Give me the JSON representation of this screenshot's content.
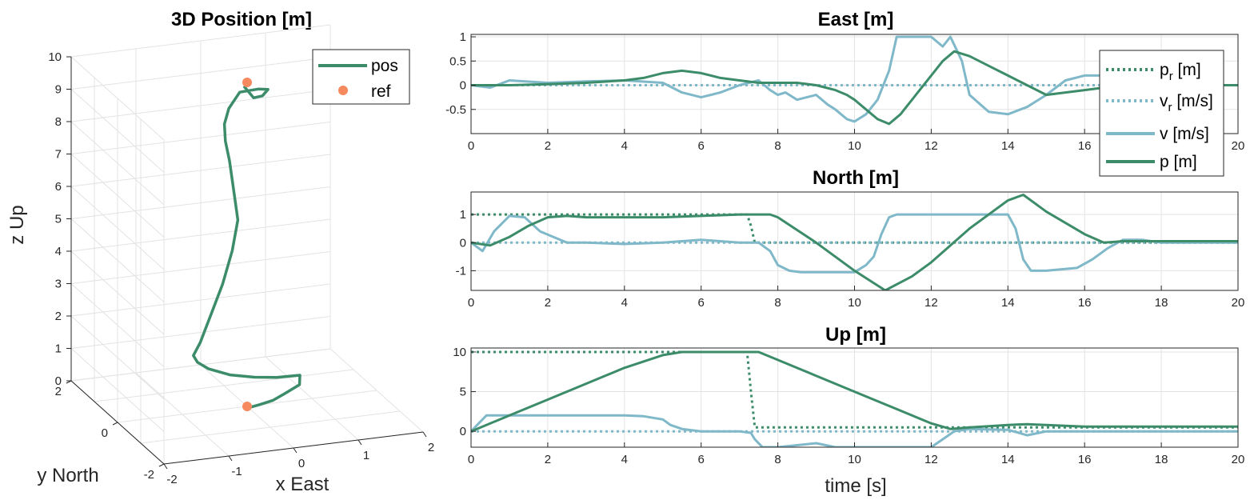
{
  "colors": {
    "pos": "#3c8c6a",
    "ref": "#f7895e",
    "vel": "#7fb8c8",
    "grid": "#e3e3e3",
    "axis": "#262626"
  },
  "chart_data": [
    {
      "type": "line3d",
      "title": "3D Position [m]",
      "xlabel": "x East",
      "ylabel": "y North",
      "zlabel": "z Up",
      "xticks": [
        "-2",
        "-1",
        "0",
        "1",
        "2"
      ],
      "yticks": [
        "-2",
        "0",
        "2"
      ],
      "zticks": [
        "0",
        "1",
        "2",
        "3",
        "4",
        "5",
        "6",
        "7",
        "8",
        "9",
        "10"
      ],
      "xlim": [
        -2,
        2
      ],
      "ylim": [
        -2,
        2
      ],
      "zlim": [
        0,
        10
      ],
      "grid": true,
      "legend": {
        "placement": "top-right",
        "entries": [
          "pos",
          "ref"
        ]
      },
      "series": [
        {
          "name": "pos",
          "x": [
            -0.05,
            0.05,
            0.15,
            0.25,
            0.45,
            0.6,
            0.35,
            0.15,
            -0.05,
            -0.2,
            -0.3,
            -0.4,
            -0.4,
            -0.3,
            -0.2,
            -0.05,
            0.0,
            -0.1,
            -0.2,
            -0.3,
            -0.35,
            -0.3,
            -0.15,
            0.1,
            0.25,
            0.2,
            0.1,
            -0.05
          ],
          "y": [
            -0.2,
            -0.4,
            -0.7,
            -0.9,
            -1.0,
            -0.6,
            -0.3,
            0.1,
            0.6,
            1.1,
            1.3,
            1.2,
            0.9,
            0.7,
            0.5,
            0.5,
            0.4,
            0.3,
            0.2,
            0.1,
            0.0,
            -0.05,
            -0.1,
            -0.2,
            -0.2,
            -0.1,
            0.0,
            0.0
          ],
          "z": [
            0.1,
            0.3,
            0.6,
            0.9,
            1.2,
            1.2,
            1.0,
            0.8,
            0.6,
            0.5,
            0.6,
            0.9,
            1.5,
            2.5,
            3.5,
            4.5,
            5.5,
            6.5,
            7.5,
            8.2,
            8.8,
            9.3,
            9.8,
            9.9,
            9.85,
            9.6,
            9.5,
            9.9
          ]
        },
        {
          "name": "ref",
          "points": [
            {
              "x": 0,
              "y": 0,
              "z": 10
            },
            {
              "x": 0,
              "y": 0,
              "z": 0
            }
          ]
        }
      ]
    },
    {
      "type": "line",
      "title": "East [m]",
      "xlim": [
        0,
        20
      ],
      "ylim": [
        -1,
        1.05
      ],
      "xticks": [
        0,
        2,
        4,
        6,
        8,
        10,
        12,
        14,
        16,
        18,
        20
      ],
      "yticks": [
        1,
        0.5,
        0,
        -0.5
      ],
      "ytick_labels": [
        "1",
        "0.5",
        "0",
        "-0.5"
      ],
      "grid": true,
      "legend": {
        "placement": "top-right",
        "entries": [
          "p_r [m]",
          "v_r [m/s]",
          "v [m/s]",
          "p [m]"
        ]
      },
      "series": [
        {
          "name": "p_r [m]",
          "style": "dotted",
          "x": [
            0,
            20
          ],
          "y": [
            0,
            0
          ]
        },
        {
          "name": "v_r [m/s]",
          "style": "dotted",
          "x": [
            0,
            20
          ],
          "y": [
            0,
            0
          ]
        },
        {
          "name": "v [m/s]",
          "x": [
            0,
            0.5,
            1,
            2,
            3,
            4,
            5,
            5.5,
            6,
            6.5,
            7,
            7.5,
            7.8,
            8,
            8.2,
            8.5,
            9,
            9.3,
            9.5,
            9.8,
            10,
            10.3,
            10.6,
            10.9,
            11.1,
            11.5,
            12,
            12.3,
            12.5,
            12.8,
            13,
            13.5,
            14,
            14.5,
            15,
            15.5,
            16,
            16.5,
            17,
            18,
            19,
            20
          ],
          "y": [
            0,
            -0.05,
            0.1,
            0.05,
            0.08,
            0.1,
            0.05,
            -0.15,
            -0.25,
            -0.15,
            0.0,
            0.1,
            -0.1,
            -0.2,
            -0.15,
            -0.3,
            -0.2,
            -0.4,
            -0.5,
            -0.7,
            -0.75,
            -0.6,
            -0.3,
            0.3,
            1.0,
            1.0,
            1.0,
            0.8,
            1.0,
            0.5,
            -0.2,
            -0.55,
            -0.6,
            -0.45,
            -0.2,
            0.1,
            0.2,
            0.2,
            0.1,
            0,
            0,
            0
          ]
        },
        {
          "name": "p [m]",
          "x": [
            0,
            1,
            2,
            3,
            4,
            4.5,
            5,
            5.5,
            6,
            6.5,
            7,
            7.5,
            8,
            8.5,
            9,
            9.5,
            9.8,
            10,
            10.3,
            10.6,
            10.9,
            11.2,
            11.6,
            12,
            12.3,
            12.6,
            13,
            13.5,
            14,
            14.5,
            15,
            16,
            17,
            18,
            19,
            20
          ],
          "y": [
            0,
            0,
            0.02,
            0.05,
            0.1,
            0.15,
            0.25,
            0.3,
            0.25,
            0.15,
            0.1,
            0.05,
            0.05,
            0.05,
            0.0,
            -0.1,
            -0.2,
            -0.3,
            -0.5,
            -0.7,
            -0.8,
            -0.6,
            -0.2,
            0.2,
            0.5,
            0.7,
            0.6,
            0.4,
            0.2,
            0.0,
            -0.2,
            -0.1,
            0,
            0,
            0,
            0
          ]
        }
      ]
    },
    {
      "type": "line",
      "title": "North [m]",
      "xlim": [
        0,
        20
      ],
      "ylim": [
        -1.7,
        1.8
      ],
      "xticks": [
        0,
        2,
        4,
        6,
        8,
        10,
        12,
        14,
        16,
        18,
        20
      ],
      "yticks": [
        1,
        0,
        -1
      ],
      "ytick_labels": [
        "1",
        "0",
        "-1"
      ],
      "grid": true,
      "series": [
        {
          "name": "p_r [m]",
          "style": "dotted",
          "x": [
            0,
            7.2,
            7.3,
            7.4,
            20
          ],
          "y": [
            1,
            1,
            0.6,
            0,
            0
          ]
        },
        {
          "name": "v_r [m/s]",
          "style": "dotted",
          "x": [
            0,
            20
          ],
          "y": [
            0,
            0
          ]
        },
        {
          "name": "v [m/s]",
          "x": [
            0,
            0.3,
            0.6,
            1,
            1.4,
            1.8,
            2.5,
            3,
            4,
            5,
            6,
            7,
            7.5,
            7.8,
            8,
            8.3,
            8.6,
            9,
            10,
            10.3,
            10.5,
            10.7,
            10.9,
            11.1,
            11.5,
            12,
            13,
            14,
            14.2,
            14.4,
            14.6,
            15,
            15.4,
            15.8,
            16.2,
            16.6,
            17,
            17.5,
            18,
            19,
            20
          ],
          "y": [
            0,
            -0.3,
            0.4,
            0.95,
            0.9,
            0.4,
            0.0,
            0.0,
            -0.05,
            0.0,
            0.1,
            0.0,
            0.0,
            -0.3,
            -0.8,
            -1.0,
            -1.05,
            -1.05,
            -1.05,
            -0.8,
            -0.5,
            0.3,
            0.9,
            1.0,
            1.0,
            1.0,
            1.0,
            1.0,
            0.5,
            -0.6,
            -1.0,
            -1.0,
            -0.95,
            -0.9,
            -0.6,
            -0.2,
            0.1,
            0.1,
            0.0,
            0.0,
            0.0
          ]
        },
        {
          "name": "p [m]",
          "x": [
            0,
            0.5,
            1,
            1.5,
            2,
            2.5,
            3,
            4,
            5,
            6,
            7,
            7.5,
            7.8,
            8,
            9,
            10,
            10.8,
            11.5,
            12,
            13,
            14,
            14.4,
            15,
            16,
            16.5,
            17,
            18,
            19,
            20
          ],
          "y": [
            0,
            -0.1,
            0.2,
            0.6,
            0.9,
            0.95,
            0.9,
            0.9,
            0.9,
            0.95,
            1.0,
            1.0,
            1.0,
            0.9,
            0.0,
            -1.0,
            -1.7,
            -1.2,
            -0.7,
            0.5,
            1.5,
            1.7,
            1.1,
            0.3,
            0.0,
            0.05,
            0.05,
            0.05,
            0.05
          ]
        }
      ]
    },
    {
      "type": "line",
      "title": "Up [m]",
      "xlabel": "time [s]",
      "xlim": [
        0,
        20
      ],
      "ylim": [
        -2,
        10.5
      ],
      "xticks": [
        0,
        2,
        4,
        6,
        8,
        10,
        12,
        14,
        16,
        18,
        20
      ],
      "yticks": [
        10,
        5,
        0
      ],
      "ytick_labels": [
        "10",
        "5",
        "0"
      ],
      "grid": true,
      "series": [
        {
          "name": "p_r [m]",
          "style": "dotted",
          "x": [
            0,
            7.2,
            7.3,
            7.4,
            20
          ],
          "y": [
            10,
            10,
            5,
            0.5,
            0.5
          ]
        },
        {
          "name": "v_r [m/s]",
          "style": "dotted",
          "x": [
            0,
            20
          ],
          "y": [
            0,
            0
          ]
        },
        {
          "name": "v [m/s]",
          "x": [
            0,
            0.2,
            0.4,
            1,
            2,
            3,
            4,
            4.5,
            5,
            5.2,
            5.5,
            6,
            7,
            7.3,
            7.4,
            7.6,
            8,
            9,
            9.5,
            10,
            11,
            12,
            12.3,
            12.6,
            13,
            14,
            14.5,
            15,
            16,
            17,
            18,
            19,
            20
          ],
          "y": [
            0,
            1.0,
            2.0,
            2.0,
            2.0,
            2.0,
            2.0,
            1.9,
            1.5,
            0.8,
            0.3,
            0.0,
            0.0,
            -0.2,
            -1.0,
            -2.0,
            -2.0,
            -1.5,
            -2.0,
            -2.0,
            -2.0,
            -2.0,
            -1.0,
            0.0,
            0.3,
            0.2,
            -0.5,
            0.0,
            0.0,
            0.0,
            0.0,
            0.0,
            0.0
          ]
        },
        {
          "name": "p [m]",
          "x": [
            0,
            0.5,
            1,
            2,
            3,
            4,
            5,
            5.5,
            6,
            7,
            7.5,
            8,
            9,
            10,
            11,
            12,
            12.5,
            13,
            14,
            14.5,
            15,
            16,
            17,
            18,
            19,
            20
          ],
          "y": [
            0,
            1.0,
            2.0,
            4.0,
            6.0,
            8.0,
            9.6,
            10,
            10,
            10,
            10,
            9.0,
            7.0,
            5.0,
            3.0,
            1.0,
            0.3,
            0.5,
            0.8,
            0.9,
            0.8,
            0.6,
            0.6,
            0.6,
            0.6,
            0.6
          ]
        }
      ]
    }
  ]
}
